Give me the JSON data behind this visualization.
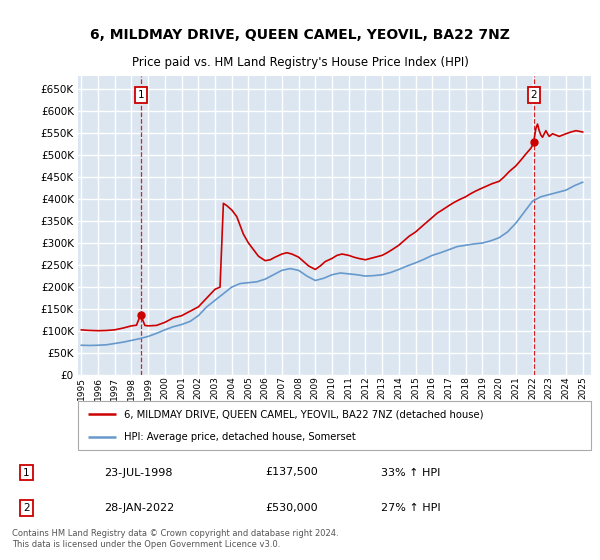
{
  "title": "6, MILDMAY DRIVE, QUEEN CAMEL, YEOVIL, BA22 7NZ",
  "subtitle": "Price paid vs. HM Land Registry's House Price Index (HPI)",
  "background_color": "#dce6f1",
  "plot_bg_color": "#dce6f1",
  "grid_color": "#ffffff",
  "hpi_color": "#6699cc",
  "price_color": "#cc0000",
  "ylim": [
    0,
    680000
  ],
  "yticks": [
    0,
    50000,
    100000,
    150000,
    200000,
    250000,
    300000,
    350000,
    400000,
    450000,
    500000,
    550000,
    600000,
    650000
  ],
  "xlim_start": 1994.8,
  "xlim_end": 2025.5,
  "xtick_years": [
    1995,
    1996,
    1997,
    1998,
    1999,
    2000,
    2001,
    2002,
    2003,
    2004,
    2005,
    2006,
    2007,
    2008,
    2009,
    2010,
    2011,
    2012,
    2013,
    2014,
    2015,
    2016,
    2017,
    2018,
    2019,
    2020,
    2021,
    2022,
    2023,
    2024,
    2025
  ],
  "sale1_x": 1998.55,
  "sale1_y": 137500,
  "sale1_label": "1",
  "sale2_x": 2022.07,
  "sale2_y": 530000,
  "sale2_label": "2",
  "legend_line1": "6, MILDMAY DRIVE, QUEEN CAMEL, YEOVIL, BA22 7NZ (detached house)",
  "legend_line2": "HPI: Average price, detached house, Somerset",
  "table_row1": [
    "1",
    "23-JUL-1998",
    "£137,500",
    "33% ↑ HPI"
  ],
  "table_row2": [
    "2",
    "28-JAN-2022",
    "£530,000",
    "27% ↑ HPI"
  ],
  "footnote": "Contains HM Land Registry data © Crown copyright and database right 2024.\nThis data is licensed under the Open Government Licence v3.0.",
  "hpi_data": [
    [
      1995.0,
      68000
    ],
    [
      1995.5,
      67500
    ],
    [
      1996.0,
      68000
    ],
    [
      1996.5,
      69000
    ],
    [
      1997.0,
      72000
    ],
    [
      1997.5,
      75000
    ],
    [
      1998.0,
      79000
    ],
    [
      1998.5,
      83000
    ],
    [
      1999.0,
      88000
    ],
    [
      1999.5,
      95000
    ],
    [
      2000.0,
      103000
    ],
    [
      2000.5,
      110000
    ],
    [
      2001.0,
      115000
    ],
    [
      2001.5,
      122000
    ],
    [
      2002.0,
      135000
    ],
    [
      2002.5,
      155000
    ],
    [
      2003.0,
      170000
    ],
    [
      2003.5,
      185000
    ],
    [
      2004.0,
      200000
    ],
    [
      2004.5,
      208000
    ],
    [
      2005.0,
      210000
    ],
    [
      2005.5,
      212000
    ],
    [
      2006.0,
      218000
    ],
    [
      2006.5,
      228000
    ],
    [
      2007.0,
      238000
    ],
    [
      2007.5,
      242000
    ],
    [
      2008.0,
      238000
    ],
    [
      2008.5,
      225000
    ],
    [
      2009.0,
      215000
    ],
    [
      2009.5,
      220000
    ],
    [
      2010.0,
      228000
    ],
    [
      2010.5,
      232000
    ],
    [
      2011.0,
      230000
    ],
    [
      2011.5,
      228000
    ],
    [
      2012.0,
      225000
    ],
    [
      2012.5,
      226000
    ],
    [
      2013.0,
      228000
    ],
    [
      2013.5,
      233000
    ],
    [
      2014.0,
      240000
    ],
    [
      2014.5,
      248000
    ],
    [
      2015.0,
      255000
    ],
    [
      2015.5,
      263000
    ],
    [
      2016.0,
      272000
    ],
    [
      2016.5,
      278000
    ],
    [
      2017.0,
      285000
    ],
    [
      2017.5,
      292000
    ],
    [
      2018.0,
      295000
    ],
    [
      2018.5,
      298000
    ],
    [
      2019.0,
      300000
    ],
    [
      2019.5,
      305000
    ],
    [
      2020.0,
      312000
    ],
    [
      2020.5,
      325000
    ],
    [
      2021.0,
      345000
    ],
    [
      2021.5,
      370000
    ],
    [
      2022.0,
      395000
    ],
    [
      2022.5,
      405000
    ],
    [
      2023.0,
      410000
    ],
    [
      2023.5,
      415000
    ],
    [
      2024.0,
      420000
    ],
    [
      2024.5,
      430000
    ],
    [
      2025.0,
      438000
    ]
  ],
  "price_data": [
    [
      1995.0,
      103000
    ],
    [
      1995.3,
      102000
    ],
    [
      1995.6,
      101500
    ],
    [
      1996.0,
      101000
    ],
    [
      1996.5,
      101500
    ],
    [
      1997.0,
      103000
    ],
    [
      1997.5,
      107000
    ],
    [
      1998.0,
      112000
    ],
    [
      1998.3,
      113500
    ],
    [
      1998.55,
      137500
    ],
    [
      1998.8,
      113000
    ],
    [
      1999.0,
      112000
    ],
    [
      1999.5,
      113000
    ],
    [
      2000.0,
      120000
    ],
    [
      2000.5,
      130000
    ],
    [
      2001.0,
      135000
    ],
    [
      2001.5,
      145000
    ],
    [
      2002.0,
      155000
    ],
    [
      2002.5,
      175000
    ],
    [
      2003.0,
      195000
    ],
    [
      2003.3,
      200000
    ],
    [
      2003.5,
      390000
    ],
    [
      2003.7,
      385000
    ],
    [
      2004.0,
      375000
    ],
    [
      2004.3,
      360000
    ],
    [
      2004.5,
      340000
    ],
    [
      2004.7,
      320000
    ],
    [
      2005.0,
      300000
    ],
    [
      2005.3,
      285000
    ],
    [
      2005.6,
      270000
    ],
    [
      2006.0,
      260000
    ],
    [
      2006.3,
      262000
    ],
    [
      2006.6,
      268000
    ],
    [
      2007.0,
      275000
    ],
    [
      2007.3,
      278000
    ],
    [
      2007.6,
      275000
    ],
    [
      2008.0,
      268000
    ],
    [
      2008.3,
      258000
    ],
    [
      2008.6,
      248000
    ],
    [
      2009.0,
      240000
    ],
    [
      2009.3,
      248000
    ],
    [
      2009.6,
      258000
    ],
    [
      2010.0,
      265000
    ],
    [
      2010.3,
      272000
    ],
    [
      2010.6,
      275000
    ],
    [
      2011.0,
      272000
    ],
    [
      2011.3,
      268000
    ],
    [
      2011.6,
      265000
    ],
    [
      2012.0,
      262000
    ],
    [
      2012.3,
      265000
    ],
    [
      2012.6,
      268000
    ],
    [
      2013.0,
      272000
    ],
    [
      2013.3,
      278000
    ],
    [
      2013.6,
      285000
    ],
    [
      2014.0,
      295000
    ],
    [
      2014.3,
      305000
    ],
    [
      2014.6,
      315000
    ],
    [
      2015.0,
      325000
    ],
    [
      2015.3,
      335000
    ],
    [
      2015.6,
      345000
    ],
    [
      2016.0,
      358000
    ],
    [
      2016.3,
      368000
    ],
    [
      2016.6,
      375000
    ],
    [
      2017.0,
      385000
    ],
    [
      2017.3,
      392000
    ],
    [
      2017.6,
      398000
    ],
    [
      2018.0,
      405000
    ],
    [
      2018.3,
      412000
    ],
    [
      2018.6,
      418000
    ],
    [
      2019.0,
      425000
    ],
    [
      2019.3,
      430000
    ],
    [
      2019.6,
      435000
    ],
    [
      2020.0,
      440000
    ],
    [
      2020.3,
      450000
    ],
    [
      2020.6,
      462000
    ],
    [
      2021.0,
      475000
    ],
    [
      2021.3,
      488000
    ],
    [
      2021.6,
      502000
    ],
    [
      2021.9,
      515000
    ],
    [
      2022.0,
      522000
    ],
    [
      2022.07,
      530000
    ],
    [
      2022.2,
      560000
    ],
    [
      2022.3,
      570000
    ],
    [
      2022.4,
      555000
    ],
    [
      2022.5,
      545000
    ],
    [
      2022.6,
      540000
    ],
    [
      2022.7,
      548000
    ],
    [
      2022.8,
      555000
    ],
    [
      2022.9,
      548000
    ],
    [
      2023.0,
      542000
    ],
    [
      2023.2,
      548000
    ],
    [
      2023.4,
      545000
    ],
    [
      2023.6,
      542000
    ],
    [
      2023.8,
      545000
    ],
    [
      2024.0,
      548000
    ],
    [
      2024.3,
      552000
    ],
    [
      2024.6,
      555000
    ],
    [
      2025.0,
      552000
    ]
  ]
}
